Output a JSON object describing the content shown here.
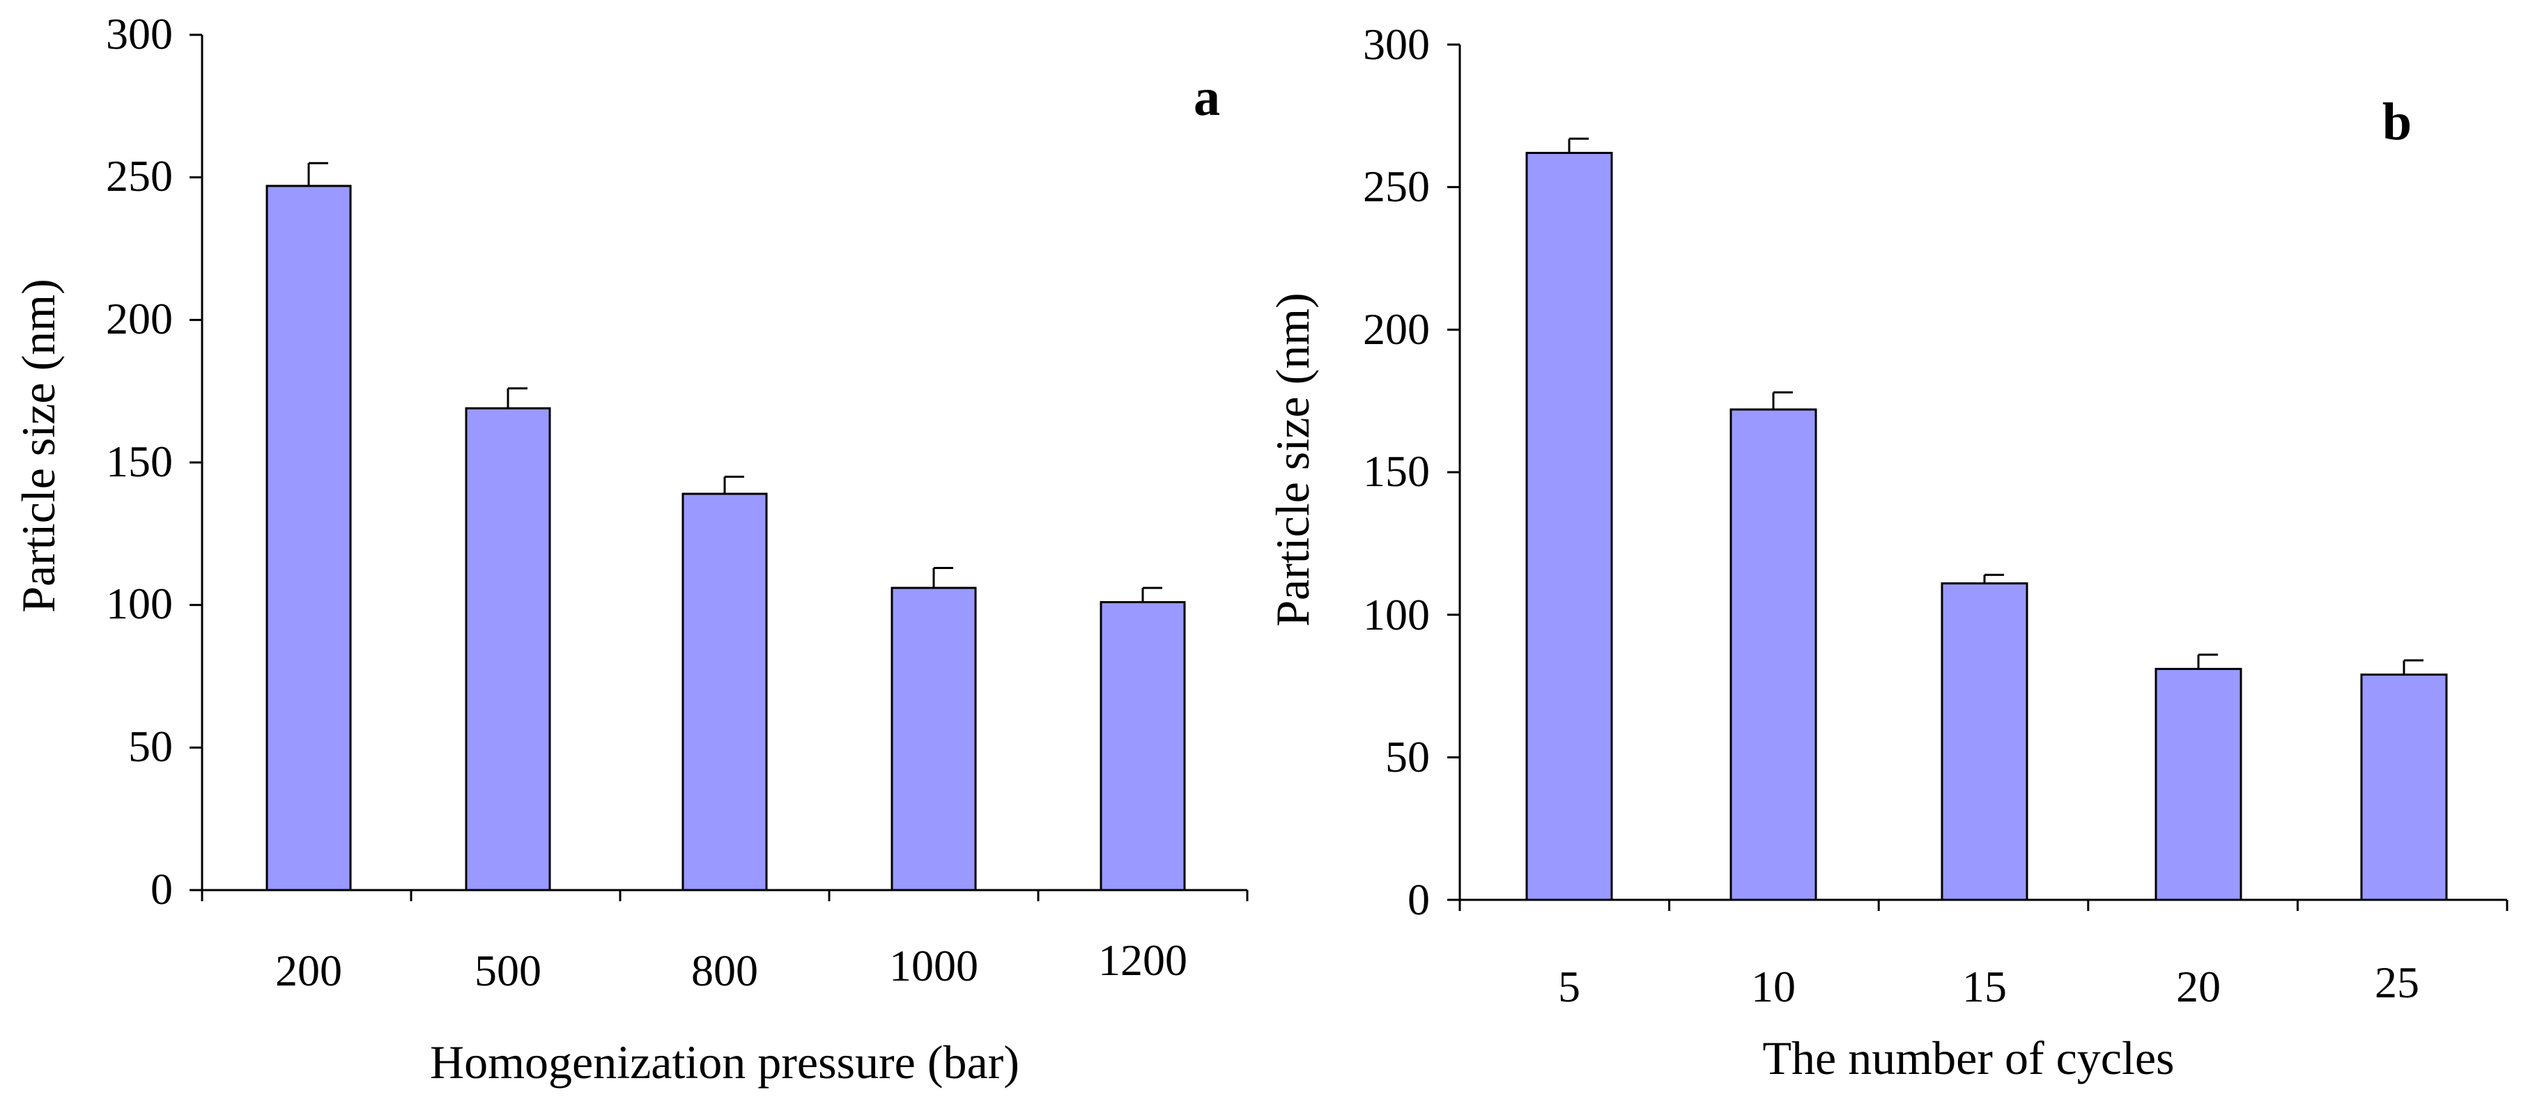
{
  "figure": {
    "bar_fill": "#9999ff",
    "bar_stroke": "#000000"
  },
  "chart_data": [
    {
      "type": "bar",
      "panel_label": "a",
      "categories": [
        "200",
        "500",
        "800",
        "1000",
        "1200"
      ],
      "values": [
        247,
        169,
        139,
        106,
        101
      ],
      "errors": [
        8,
        7,
        6,
        7,
        5
      ],
      "xlabel": "Homogenization pressure (bar)",
      "ylabel": "Particle size (nm)",
      "ylim": [
        0,
        300
      ],
      "yticks": [
        "0",
        "50",
        "100",
        "150",
        "200",
        "250",
        "300"
      ],
      "grid": false
    },
    {
      "type": "bar",
      "panel_label": "b",
      "categories": [
        "5",
        "10",
        "15",
        "20",
        "25"
      ],
      "values": [
        262,
        172,
        111,
        81,
        79
      ],
      "errors": [
        5,
        6,
        3,
        5,
        5
      ],
      "xlabel": "The number of cycles",
      "ylabel": "Particle size (nm)",
      "ylim": [
        0,
        300
      ],
      "yticks": [
        "0",
        "50",
        "100",
        "150",
        "200",
        "250",
        "300"
      ],
      "grid": false
    }
  ]
}
